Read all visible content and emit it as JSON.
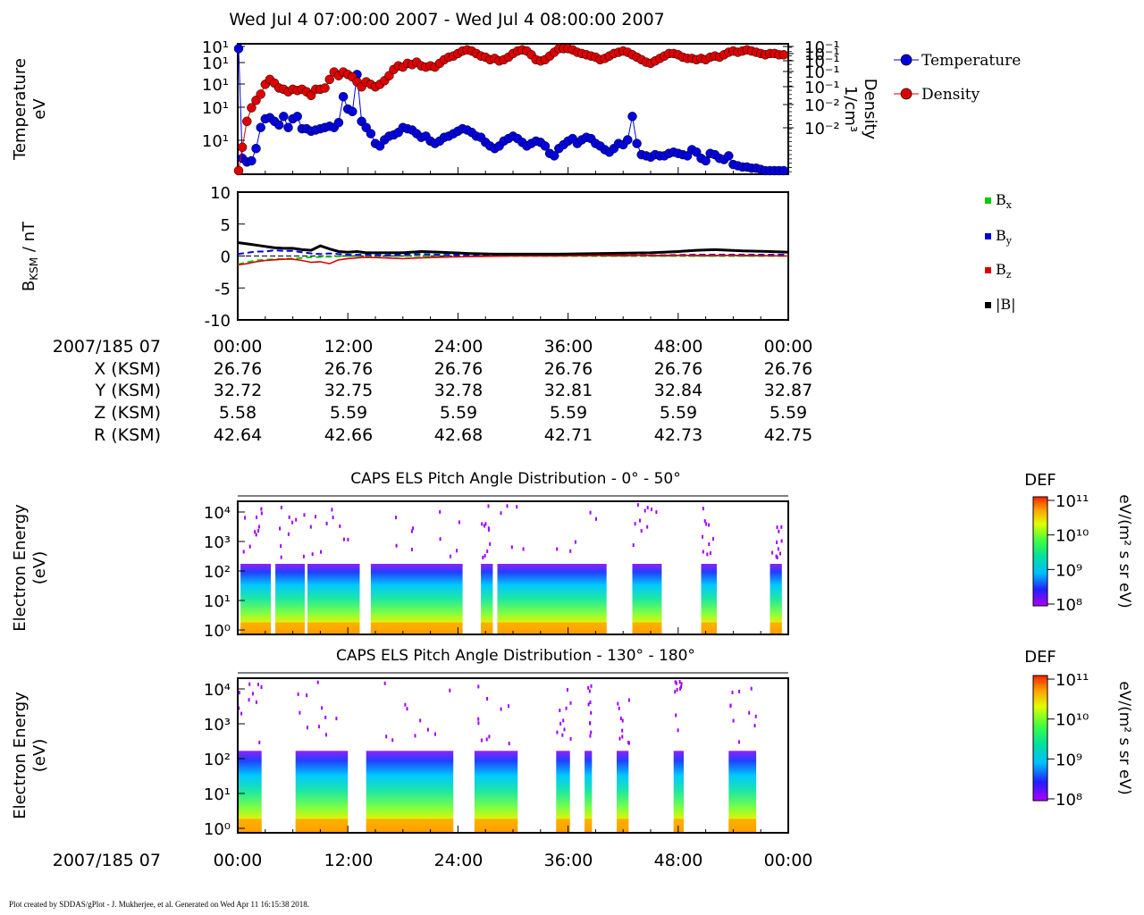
{
  "title": "Wed Jul 4 07:00:00 2007 - Wed Jul 4 08:00:00 2007",
  "footer": "Plot created by SDDAS/gPlot - J. Mukherjee, et al.  Generated on Wed Apr 11 16:15:38 2018.",
  "colors": {
    "temperature": "#0000dd",
    "density": "#dd0000",
    "bx": "#00cc00",
    "by": "#0000dd",
    "bz": "#dd0000",
    "bmag": "#000000"
  },
  "chart_data": [
    {
      "type": "scatter",
      "ylabel": [
        "Temperature",
        "eV"
      ],
      "y2label": [
        "Density",
        "1/cm³"
      ],
      "left_tick_labels": [
        "10¹",
        "10¹",
        "10¹",
        "10¹",
        "10¹"
      ],
      "right_tick_labels": [
        "10⁻¹",
        "10⁻¹",
        "10⁻¹",
        "10⁻¹",
        "10⁻¹",
        "10⁻²",
        "10⁻²"
      ],
      "x_minutes_range": [
        0,
        60
      ],
      "series": [
        {
          "name": "Temperature",
          "x": [
            0.1,
            0.5,
            1.0,
            1.5,
            2.0,
            2.5,
            3.0,
            3.5,
            4.0,
            4.5,
            5.0,
            5.5,
            6.0,
            6.5,
            7.0,
            7.5,
            8.0,
            8.5,
            9.0,
            9.5,
            10.0,
            10.5,
            11.0,
            11.5,
            12.0,
            12.5,
            13.0,
            13.5,
            14.0,
            14.5,
            15.0,
            15.5,
            16.0,
            16.5,
            17.0,
            17.5,
            18.0,
            18.5,
            19.0,
            19.5,
            20.0,
            20.5,
            21.0,
            21.5,
            22.0,
            22.5,
            23.0,
            23.5,
            24.0,
            24.5,
            25.0,
            25.5,
            26.0,
            26.5,
            27.0,
            27.5,
            28.0,
            28.5,
            29.0,
            29.5,
            30.0,
            30.5,
            31.0,
            31.5,
            32.0,
            32.5,
            33.0,
            33.5,
            34.0,
            34.5,
            35.0,
            35.5,
            36.0,
            36.5,
            37.0,
            37.5,
            38.0,
            38.5,
            39.0,
            39.5,
            40.0,
            40.5,
            41.0,
            41.5,
            42.0,
            42.5,
            43.0,
            43.5,
            44.0,
            44.5,
            45.0,
            45.5,
            46.0,
            46.5,
            47.0,
            47.5,
            48.0,
            48.5,
            49.0,
            49.5,
            50.0,
            50.5,
            51.0,
            51.5,
            52.0,
            52.5,
            53.0,
            53.5,
            54.0,
            54.5,
            55.0,
            55.5,
            56.0,
            56.5,
            57.0,
            57.5,
            58.0,
            58.5,
            59.0,
            59.5
          ],
          "v": [
            0.99,
            0.1,
            0.07,
            0.08,
            0.18,
            0.35,
            0.42,
            0.43,
            0.4,
            0.37,
            0.44,
            0.35,
            0.42,
            0.44,
            0.34,
            0.34,
            0.32,
            0.33,
            0.34,
            0.35,
            0.36,
            0.35,
            0.39,
            0.6,
            0.5,
            0.48,
            0.78,
            0.4,
            0.35,
            0.3,
            0.22,
            0.2,
            0.25,
            0.28,
            0.29,
            0.31,
            0.35,
            0.34,
            0.33,
            0.3,
            0.27,
            0.28,
            0.24,
            0.22,
            0.24,
            0.27,
            0.28,
            0.3,
            0.32,
            0.34,
            0.33,
            0.31,
            0.28,
            0.27,
            0.23,
            0.2,
            0.18,
            0.2,
            0.24,
            0.26,
            0.28,
            0.26,
            0.23,
            0.2,
            0.22,
            0.24,
            0.23,
            0.2,
            0.14,
            0.12,
            0.18,
            0.21,
            0.24,
            0.26,
            0.22,
            0.25,
            0.27,
            0.26,
            0.22,
            0.2,
            0.17,
            0.15,
            0.18,
            0.22,
            0.21,
            0.25,
            0.44,
            0.22,
            0.13,
            0.12,
            0.11,
            0.13,
            0.12,
            0.12,
            0.14,
            0.15,
            0.14,
            0.13,
            0.12,
            0.17,
            0.15,
            0.1,
            0.08,
            0.14,
            0.13,
            0.1,
            0.09,
            0.12,
            0.05,
            0.04,
            0.03,
            0.03,
            0.02,
            0.02,
            0.01,
            0.0,
            0.0,
            0.0,
            0.0,
            0.0
          ]
        },
        {
          "name": "Density",
          "x": [
            0.1,
            0.5,
            1.0,
            1.5,
            2.0,
            2.5,
            3.0,
            3.5,
            4.0,
            4.5,
            5.0,
            5.5,
            6.0,
            6.5,
            7.0,
            7.5,
            8.0,
            8.5,
            9.0,
            9.5,
            10.0,
            10.5,
            11.0,
            11.5,
            12.0,
            12.5,
            13.0,
            13.5,
            14.0,
            14.5,
            15.0,
            15.5,
            16.0,
            16.5,
            17.0,
            17.5,
            18.0,
            18.5,
            19.0,
            19.5,
            20.0,
            20.5,
            21.0,
            21.5,
            22.0,
            22.5,
            23.0,
            23.5,
            24.0,
            24.5,
            25.0,
            25.5,
            26.0,
            26.5,
            27.0,
            27.5,
            28.0,
            28.5,
            29.0,
            29.5,
            30.0,
            30.5,
            31.0,
            31.5,
            32.0,
            32.5,
            33.0,
            33.5,
            34.0,
            34.5,
            35.0,
            35.5,
            36.0,
            36.5,
            37.0,
            37.5,
            38.0,
            38.5,
            39.0,
            39.5,
            40.0,
            40.5,
            41.0,
            41.5,
            42.0,
            42.5,
            43.0,
            43.5,
            44.0,
            44.5,
            45.0,
            45.5,
            46.0,
            46.5,
            47.0,
            47.5,
            48.0,
            48.5,
            49.0,
            49.5,
            50.0,
            50.5,
            51.0,
            51.5,
            52.0,
            52.5,
            53.0,
            53.5,
            54.0,
            54.5,
            55.0,
            55.5,
            56.0,
            56.5,
            57.0,
            57.5,
            58.0,
            58.5,
            59.0,
            59.5
          ],
          "v": [
            0.0,
            0.19,
            0.4,
            0.51,
            0.57,
            0.62,
            0.7,
            0.74,
            0.71,
            0.67,
            0.66,
            0.64,
            0.66,
            0.65,
            0.66,
            0.64,
            0.61,
            0.66,
            0.66,
            0.67,
            0.74,
            0.8,
            0.77,
            0.8,
            0.78,
            0.76,
            0.72,
            0.68,
            0.72,
            0.7,
            0.68,
            0.7,
            0.73,
            0.77,
            0.82,
            0.85,
            0.84,
            0.87,
            0.86,
            0.88,
            0.85,
            0.84,
            0.85,
            0.84,
            0.87,
            0.9,
            0.92,
            0.93,
            0.95,
            0.97,
            0.98,
            0.97,
            0.95,
            0.93,
            0.92,
            0.9,
            0.91,
            0.89,
            0.9,
            0.92,
            0.95,
            0.97,
            0.98,
            0.97,
            0.94,
            0.9,
            0.89,
            0.9,
            0.93,
            0.96,
            0.99,
            0.99,
            0.99,
            0.98,
            0.96,
            0.95,
            0.94,
            0.93,
            0.92,
            0.9,
            0.91,
            0.93,
            0.95,
            0.96,
            0.97,
            0.96,
            0.94,
            0.92,
            0.9,
            0.88,
            0.87,
            0.89,
            0.91,
            0.93,
            0.95,
            0.95,
            0.94,
            0.92,
            0.91,
            0.91,
            0.9,
            0.91,
            0.9,
            0.92,
            0.93,
            0.92,
            0.94,
            0.96,
            0.97,
            0.96,
            0.97,
            0.98,
            0.97,
            0.96,
            0.95,
            0.94,
            0.95,
            0.95,
            0.94,
            0.94
          ]
        }
      ]
    },
    {
      "type": "line",
      "ylabel": "B",
      "ylabel_sub": "KSM",
      "ylabel_unit": " / nT",
      "ylim": [
        -10,
        10
      ],
      "yticks": [
        10,
        5,
        0,
        -5,
        -10
      ],
      "x_minutes_range": [
        0,
        60
      ],
      "series": [
        {
          "name": "Bx",
          "x": [
            0,
            1,
            2,
            4,
            6,
            8,
            10,
            12,
            15,
            20,
            25,
            30,
            40,
            50,
            60
          ],
          "values": [
            -1.3,
            -1.0,
            -0.7,
            -0.5,
            -0.4,
            -0.2,
            -0.1,
            0.0,
            0.0,
            0.0,
            0.0,
            0.0,
            0.0,
            0.0,
            0.0
          ]
        },
        {
          "name": "By",
          "x": [
            0,
            1,
            2,
            3,
            4,
            5,
            6,
            7,
            8,
            9,
            10,
            11,
            12,
            14,
            16,
            18,
            20,
            22,
            25,
            30,
            35,
            40,
            45,
            50,
            55,
            60
          ],
          "values": [
            0.3,
            0.5,
            0.7,
            0.7,
            0.9,
            0.8,
            0.8,
            0.6,
            0.4,
            0.3,
            0.4,
            0.3,
            0.2,
            0.2,
            0.1,
            0.2,
            0.3,
            0.2,
            0.1,
            0.1,
            0.1,
            0.1,
            0.1,
            0.2,
            0.2,
            0.2
          ]
        },
        {
          "name": "Bz",
          "x": [
            0,
            1,
            2,
            3,
            4,
            5,
            6,
            7,
            8,
            9,
            10,
            11,
            12,
            13,
            14,
            16,
            18,
            20,
            22,
            25,
            30,
            35,
            40,
            45,
            50,
            55,
            60
          ],
          "values": [
            -1.4,
            -1.2,
            -0.9,
            -0.7,
            -0.6,
            -0.5,
            -0.5,
            -0.7,
            -1.0,
            -0.9,
            -1.2,
            -0.6,
            -0.4,
            -0.3,
            -0.2,
            -0.3,
            -0.4,
            -0.3,
            -0.2,
            -0.1,
            0.0,
            0.0,
            0.1,
            0.1,
            0.1,
            0.1,
            0.0
          ]
        },
        {
          "name": "|B|",
          "x": [
            0,
            1,
            2,
            3,
            4,
            5,
            6,
            7,
            8,
            9,
            10,
            11,
            12,
            13,
            14,
            16,
            18,
            20,
            22,
            25,
            28,
            30,
            35,
            40,
            45,
            48,
            50,
            52,
            55,
            58,
            60
          ],
          "values": [
            2.1,
            1.9,
            1.7,
            1.5,
            1.3,
            1.2,
            1.2,
            1.0,
            0.9,
            1.6,
            1.1,
            0.7,
            0.6,
            0.7,
            0.5,
            0.5,
            0.5,
            0.7,
            0.6,
            0.4,
            0.3,
            0.3,
            0.3,
            0.4,
            0.5,
            0.7,
            0.9,
            1.0,
            0.8,
            0.7,
            0.6
          ]
        }
      ]
    }
  ],
  "legend1": [
    "Temperature",
    "Density"
  ],
  "legend2": [
    {
      "base": "B",
      "sub": "x"
    },
    {
      "base": "B",
      "sub": "y"
    },
    {
      "base": "B",
      "sub": "z"
    },
    {
      "base": "|B|",
      "sub": ""
    }
  ],
  "time_table": {
    "row_labels": [
      "2007/185 07",
      "X (KSM)",
      "Y (KSM)",
      "Z (KSM)",
      "R (KSM)"
    ],
    "columns": [
      [
        "00:00",
        "26.76",
        "32.72",
        "5.58",
        "42.64"
      ],
      [
        "12:00",
        "26.76",
        "32.75",
        "5.59",
        "42.66"
      ],
      [
        "24:00",
        "26.76",
        "32.78",
        "5.59",
        "42.68"
      ],
      [
        "36:00",
        "26.76",
        "32.81",
        "5.59",
        "42.71"
      ],
      [
        "48:00",
        "26.76",
        "32.84",
        "5.59",
        "42.73"
      ],
      [
        "00:00",
        "26.76",
        "32.87",
        "5.59",
        "42.75"
      ]
    ]
  },
  "spectrograms": [
    {
      "title": "CAPS ELS Pitch Angle Distribution - 0° - 50°",
      "ylabel": [
        "Electron Energy",
        "(eV)"
      ],
      "yticks": [
        "10⁴",
        "10³",
        "10²",
        "10¹",
        "10⁰"
      ],
      "colorbar_title": "DEF",
      "colorbar_ticks": [
        "10¹¹",
        "10¹⁰",
        "10⁹",
        "10⁸"
      ],
      "colorbar_unit": "eV/(m² s sr eV)",
      "data_blocks_minutes": [
        [
          0.3,
          3.6
        ],
        [
          4.1,
          7.3
        ],
        [
          7.6,
          13.3
        ],
        [
          14.5,
          24.5
        ],
        [
          26.5,
          27.8
        ],
        [
          28.3,
          40.2
        ],
        [
          43.0,
          46.2
        ],
        [
          50.5,
          52.2
        ],
        [
          58.0,
          59.3
        ]
      ]
    },
    {
      "title": "CAPS ELS Pitch Angle Distribution - 130° - 180°",
      "ylabel": [
        "Electron Energy",
        "(eV)"
      ],
      "yticks": [
        "10⁴",
        "10³",
        "10²",
        "10¹",
        "10⁰"
      ],
      "colorbar_title": "DEF",
      "colorbar_ticks": [
        "10¹¹",
        "10¹⁰",
        "10⁹",
        "10⁸"
      ],
      "colorbar_unit": "eV/(m² s sr eV)",
      "data_blocks_minutes": [
        [
          0.0,
          2.6
        ],
        [
          6.3,
          12.0
        ],
        [
          14.0,
          23.5
        ],
        [
          25.8,
          30.5
        ],
        [
          34.7,
          36.2
        ],
        [
          37.8,
          38.6
        ],
        [
          41.3,
          42.6
        ],
        [
          47.5,
          48.6
        ],
        [
          53.5,
          56.5
        ]
      ]
    }
  ],
  "bottom_axis": {
    "label": "2007/185 07",
    "ticks": [
      "00:00",
      "12:00",
      "24:00",
      "36:00",
      "48:00",
      "00:00"
    ]
  }
}
